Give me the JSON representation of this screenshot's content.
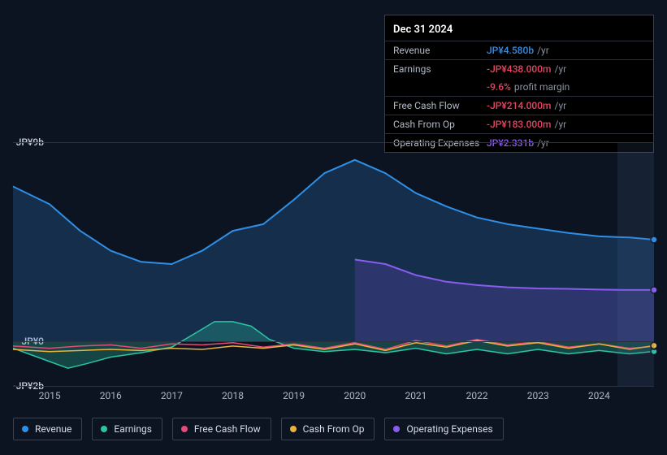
{
  "tooltip": {
    "date": "Dec 31 2024",
    "rows": [
      {
        "label": "Revenue",
        "value": "JP¥4.580b",
        "suffix": "/yr",
        "color": "#2f8fe6"
      },
      {
        "label": "Earnings",
        "value": "-JP¥438.000m",
        "suffix": "/yr",
        "color": "#e64562"
      },
      {
        "label": "",
        "value": "-9.6%",
        "suffix": "profit margin",
        "color": "#e64562",
        "noborder": true
      },
      {
        "label": "Free Cash Flow",
        "value": "-JP¥214.000m",
        "suffix": "/yr",
        "color": "#e64562"
      },
      {
        "label": "Cash From Op",
        "value": "-JP¥183.000m",
        "suffix": "/yr",
        "color": "#e64562"
      },
      {
        "label": "Operating Expenses",
        "value": "JP¥2.331b",
        "suffix": "/yr",
        "color": "#8a5cf0"
      }
    ]
  },
  "chart": {
    "type": "line-area",
    "background_color": "#0d1421",
    "ymin": -2,
    "ymax": 9,
    "zero_y": 0,
    "y_ticks": [
      {
        "v": 9,
        "label": "JP¥9b"
      },
      {
        "v": 0,
        "label": "JP¥0"
      },
      {
        "v": -2,
        "label": "-JP¥2b"
      }
    ],
    "x_years": [
      2015,
      2016,
      2017,
      2018,
      2019,
      2020,
      2021,
      2022,
      2023,
      2024
    ],
    "x_start": 2014.4,
    "x_end": 2024.9,
    "highlight_from": 2024.3,
    "highlight_to": 2024.9,
    "marker_x": 2024.9,
    "grid_color": "#2a3240",
    "tick_font_size": 12,
    "tick_color": "#aeb6c2",
    "series": [
      {
        "name": "Revenue",
        "color": "#2f8fe6",
        "fill": "rgba(47,143,230,0.22)",
        "fill_to_zero": true,
        "width": 2,
        "points": [
          [
            2014.4,
            7.0
          ],
          [
            2015.0,
            6.2
          ],
          [
            2015.5,
            5.0
          ],
          [
            2016.0,
            4.1
          ],
          [
            2016.5,
            3.6
          ],
          [
            2017.0,
            3.5
          ],
          [
            2017.5,
            4.1
          ],
          [
            2018.0,
            5.0
          ],
          [
            2018.5,
            5.3
          ],
          [
            2019.0,
            6.4
          ],
          [
            2019.5,
            7.6
          ],
          [
            2020.0,
            8.2
          ],
          [
            2020.5,
            7.6
          ],
          [
            2021.0,
            6.7
          ],
          [
            2021.5,
            6.1
          ],
          [
            2022.0,
            5.6
          ],
          [
            2022.5,
            5.3
          ],
          [
            2023.0,
            5.1
          ],
          [
            2023.5,
            4.9
          ],
          [
            2024.0,
            4.75
          ],
          [
            2024.5,
            4.7
          ],
          [
            2024.9,
            4.6
          ]
        ]
      },
      {
        "name": "Operating Expenses",
        "color": "#8a5cf0",
        "fill": "rgba(138,92,240,0.20)",
        "fill_to_zero": true,
        "width": 2,
        "points": [
          [
            2020.0,
            3.7
          ],
          [
            2020.5,
            3.5
          ],
          [
            2021.0,
            3.0
          ],
          [
            2021.5,
            2.7
          ],
          [
            2022.0,
            2.55
          ],
          [
            2022.5,
            2.45
          ],
          [
            2023.0,
            2.4
          ],
          [
            2023.5,
            2.38
          ],
          [
            2024.0,
            2.35
          ],
          [
            2024.5,
            2.33
          ],
          [
            2024.9,
            2.33
          ]
        ]
      },
      {
        "name": "Earnings",
        "color": "#2ac6a4",
        "fill": "rgba(42,198,164,0.28)",
        "fill_to_zero": true,
        "width": 1.5,
        "points": [
          [
            2014.4,
            -0.3
          ],
          [
            2014.8,
            -0.7
          ],
          [
            2015.0,
            -0.9
          ],
          [
            2015.3,
            -1.2
          ],
          [
            2015.6,
            -1.0
          ],
          [
            2016.0,
            -0.7
          ],
          [
            2016.5,
            -0.5
          ],
          [
            2017.0,
            -0.25
          ],
          [
            2017.4,
            0.4
          ],
          [
            2017.7,
            0.9
          ],
          [
            2018.0,
            0.9
          ],
          [
            2018.3,
            0.7
          ],
          [
            2018.6,
            0.1
          ],
          [
            2019.0,
            -0.3
          ],
          [
            2019.5,
            -0.45
          ],
          [
            2020.0,
            -0.35
          ],
          [
            2020.5,
            -0.5
          ],
          [
            2021.0,
            -0.3
          ],
          [
            2021.5,
            -0.55
          ],
          [
            2022.0,
            -0.35
          ],
          [
            2022.5,
            -0.55
          ],
          [
            2023.0,
            -0.35
          ],
          [
            2023.5,
            -0.55
          ],
          [
            2024.0,
            -0.4
          ],
          [
            2024.5,
            -0.55
          ],
          [
            2024.9,
            -0.44
          ]
        ]
      },
      {
        "name": "Free Cash Flow",
        "color": "#e64a7a",
        "width": 1.5,
        "points": [
          [
            2014.4,
            -0.2
          ],
          [
            2015.0,
            -0.3
          ],
          [
            2015.5,
            -0.2
          ],
          [
            2016.0,
            -0.15
          ],
          [
            2016.5,
            -0.3
          ],
          [
            2017.0,
            -0.1
          ],
          [
            2017.5,
            -0.15
          ],
          [
            2018.0,
            -0.05
          ],
          [
            2018.5,
            -0.25
          ],
          [
            2019.0,
            -0.1
          ],
          [
            2019.5,
            -0.3
          ],
          [
            2020.0,
            -0.05
          ],
          [
            2020.5,
            -0.35
          ],
          [
            2021.0,
            0.05
          ],
          [
            2021.5,
            -0.2
          ],
          [
            2022.0,
            0.1
          ],
          [
            2022.5,
            -0.15
          ],
          [
            2023.0,
            0.0
          ],
          [
            2023.5,
            -0.25
          ],
          [
            2024.0,
            -0.1
          ],
          [
            2024.5,
            -0.3
          ],
          [
            2024.9,
            -0.21
          ]
        ]
      },
      {
        "name": "Cash From Op",
        "color": "#e8b43c",
        "width": 1.5,
        "points": [
          [
            2014.4,
            -0.35
          ],
          [
            2015.0,
            -0.45
          ],
          [
            2015.5,
            -0.4
          ],
          [
            2016.0,
            -0.35
          ],
          [
            2016.5,
            -0.4
          ],
          [
            2017.0,
            -0.3
          ],
          [
            2017.5,
            -0.35
          ],
          [
            2018.0,
            -0.2
          ],
          [
            2018.5,
            -0.3
          ],
          [
            2019.0,
            -0.15
          ],
          [
            2019.5,
            -0.35
          ],
          [
            2020.0,
            -0.1
          ],
          [
            2020.5,
            -0.4
          ],
          [
            2021.0,
            -0.05
          ],
          [
            2021.5,
            -0.25
          ],
          [
            2022.0,
            0.05
          ],
          [
            2022.5,
            -0.2
          ],
          [
            2023.0,
            -0.05
          ],
          [
            2023.5,
            -0.3
          ],
          [
            2024.0,
            -0.1
          ],
          [
            2024.5,
            -0.35
          ],
          [
            2024.9,
            -0.18
          ]
        ]
      }
    ]
  },
  "legend": [
    {
      "label": "Revenue",
      "color": "#2f8fe6"
    },
    {
      "label": "Earnings",
      "color": "#2ac6a4"
    },
    {
      "label": "Free Cash Flow",
      "color": "#e64a7a"
    },
    {
      "label": "Cash From Op",
      "color": "#e8b43c"
    },
    {
      "label": "Operating Expenses",
      "color": "#8a5cf0"
    }
  ]
}
